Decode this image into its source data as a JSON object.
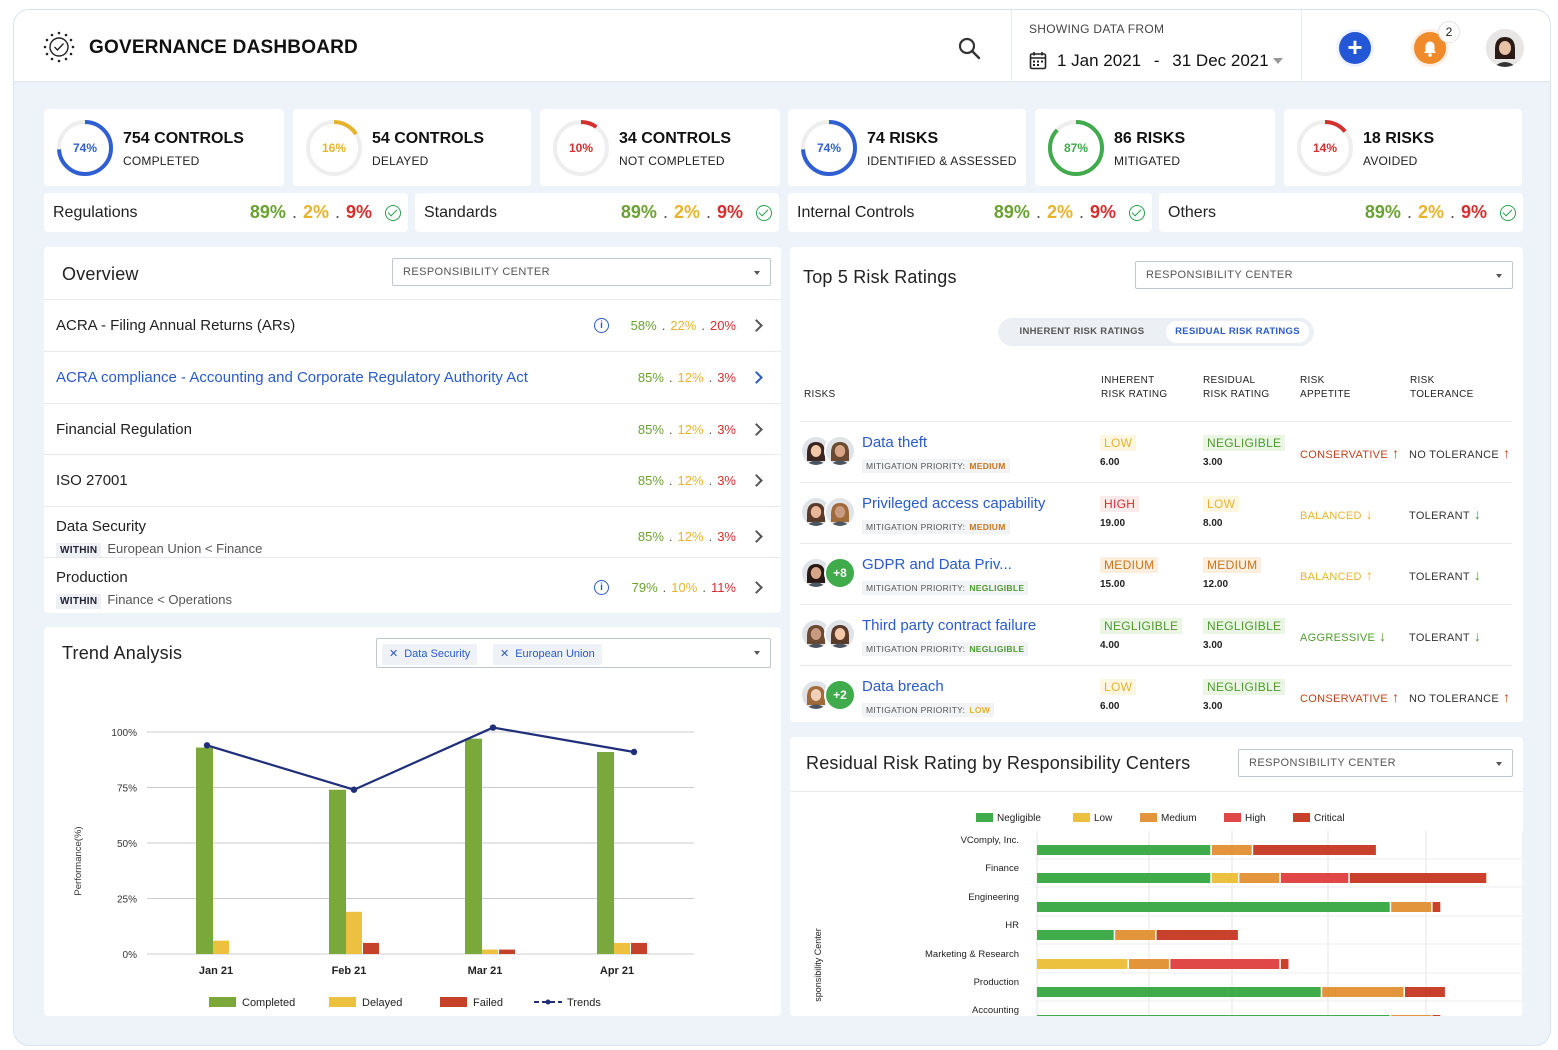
{
  "header": {
    "title": "GOVERNANCE DASHBOARD",
    "date_caption": "SHOWING DATA FROM",
    "date_start": "1 Jan 2021",
    "date_sep": "-",
    "date_end": "31 Dec 2021",
    "notification_count": "2"
  },
  "stats": [
    {
      "pct": "74%",
      "value": 0.74,
      "color": "#2f5fd3",
      "title": "754 CONTROLS",
      "sub": "COMPLETED"
    },
    {
      "pct": "16%",
      "value": 0.16,
      "color": "#e6b42c",
      "title": "54 CONTROLS",
      "sub": "DELAYED"
    },
    {
      "pct": "10%",
      "value": 0.1,
      "color": "#d4302f",
      "title": "34 CONTROLS",
      "sub": "NOT COMPLETED"
    },
    {
      "pct": "74%",
      "value": 0.74,
      "color": "#2f5fd3",
      "title": "74 RISKS",
      "sub": "IDENTIFIED & ASSESSED"
    },
    {
      "pct": "87%",
      "value": 0.87,
      "color": "#3fab4a",
      "title": "86 RISKS",
      "sub": "MITIGATED"
    },
    {
      "pct": "14%",
      "value": 0.14,
      "color": "#d4302f",
      "title": "18 RISKS",
      "sub": "AVOIDED"
    }
  ],
  "summary": [
    {
      "label": "Regulations",
      "g": "89%",
      "y": "2%",
      "r": "9%"
    },
    {
      "label": "Standards",
      "g": "89%",
      "y": "2%",
      "r": "9%"
    },
    {
      "label": "Internal Controls",
      "g": "89%",
      "y": "2%",
      "r": "9%"
    },
    {
      "label": "Others",
      "g": "89%",
      "y": "2%",
      "r": "9%"
    }
  ],
  "overview": {
    "title": "Overview",
    "select": "RESPONSIBILITY CENTER",
    "rows": [
      {
        "name": "ACRA - Filing Annual Returns (ARs)",
        "within": "",
        "within_tag": "",
        "g": "58%",
        "y": "22%",
        "r": "20%",
        "info": true,
        "link": false
      },
      {
        "name": "ACRA compliance - Accounting and Corporate Regulatory Authority Act",
        "within": "",
        "within_tag": "",
        "g": "85%",
        "y": "12%",
        "r": "3%",
        "info": false,
        "link": true
      },
      {
        "name": "Financial Regulation",
        "within": "",
        "within_tag": "",
        "g": "85%",
        "y": "12%",
        "r": "3%",
        "info": false,
        "link": false
      },
      {
        "name": "ISO 27001",
        "within": "",
        "within_tag": "",
        "g": "85%",
        "y": "12%",
        "r": "3%",
        "info": false,
        "link": false
      },
      {
        "name": "Data Security",
        "within_tag": "WITHIN",
        "within": "European Union < Finance",
        "g": "85%",
        "y": "12%",
        "r": "3%",
        "info": false,
        "link": false
      },
      {
        "name": "Production",
        "within_tag": "WITHIN",
        "within": "Finance < Operations",
        "g": "79%",
        "y": "10%",
        "r": "11%",
        "info": true,
        "link": false
      }
    ]
  },
  "trend": {
    "title": "Trend Analysis",
    "tags": [
      "Data Security",
      "European Union"
    ]
  },
  "chart_data": [
    {
      "type": "bar",
      "title": "Trend Analysis",
      "categories": [
        "Jan 21",
        "Feb 21",
        "Mar 21",
        "Apr 21"
      ],
      "series": [
        {
          "name": "Completed",
          "color": "#7aa83a",
          "values": [
            93,
            74,
            97,
            91
          ]
        },
        {
          "name": "Delayed",
          "color": "#ecc13f",
          "values": [
            6,
            19,
            2,
            5
          ]
        },
        {
          "name": "Failed",
          "color": "#c5412a",
          "values": [
            0,
            5,
            2,
            5
          ]
        },
        {
          "name": "Trends",
          "type": "line",
          "color": "#1f2f7a",
          "values": [
            94,
            74,
            102,
            91
          ]
        }
      ],
      "ylabel": "Performance(%)",
      "yticks": [
        "0%",
        "25%",
        "50%",
        "75%",
        "100%"
      ],
      "ylim": [
        0,
        100
      ],
      "grid": true,
      "legend": "bottom"
    },
    {
      "type": "bar",
      "orientation": "horizontal",
      "stacked": true,
      "title": "Residual Risk Rating by Responsibility Centers",
      "ylabel": "sponsibility Center",
      "categories": [
        "VComply, Inc.",
        "Finance",
        "Engineering",
        "HR",
        "Marketing & Research",
        "Production",
        "Accounting"
      ],
      "series": [
        {
          "name": "Negligible",
          "color": "#3fab4a",
          "values": [
            38,
            38,
            77,
            17,
            0,
            62,
            77
          ]
        },
        {
          "name": "Low",
          "color": "#ecc13f",
          "values": [
            0,
            6,
            0,
            0,
            20,
            0,
            0
          ]
        },
        {
          "name": "Medium",
          "color": "#e2953b",
          "values": [
            9,
            9,
            9,
            9,
            9,
            18,
            9
          ]
        },
        {
          "name": "High",
          "color": "#e04848",
          "values": [
            0,
            15,
            0,
            0,
            24,
            0,
            0
          ]
        },
        {
          "name": "Critical",
          "color": "#c8412d",
          "values": [
            27,
            30,
            2,
            18,
            2,
            9,
            2
          ]
        }
      ],
      "legend": "top"
    }
  ],
  "risks": {
    "title": "Top 5 Risk Ratings",
    "select": "RESPONSIBILITY CENTER",
    "toggle": [
      "INHERENT RISK RATINGS",
      "RESIDUAL RISK RATINGS"
    ],
    "headers": {
      "risks": "RISKS",
      "inherent_1": "INHERENT",
      "inherent_2": "RISK RATING",
      "residual_1": "RESIDUAL",
      "residual_2": "RISK RATING",
      "appetite_1": "RISK",
      "appetite_2": "APPETITE",
      "tolerance_1": "RISK",
      "tolerance_2": "TOLERANCE"
    },
    "rows": [
      {
        "name": "Data theft",
        "mit_label": "MITIGATION PRIORITY:",
        "mit": "MEDIUM",
        "mit_color": "#c8751e",
        "inh": "LOW",
        "inh_cls": "p-low",
        "inh_val": "6.00",
        "res": "NEGLIGIBLE",
        "res_cls": "p-neg",
        "res_val": "3.00",
        "app": "CONSERVATIVE",
        "app_cls": "c-cons",
        "app_dir": "up",
        "tol": "NO TOLERANCE",
        "tol_dir": "up",
        "tol_color": "#c0421c",
        "plus": ""
      },
      {
        "name": "Privileged access capability",
        "mit_label": "MITIGATION PRIORITY:",
        "mit": "MEDIUM",
        "mit_color": "#c8751e",
        "inh": "HIGH",
        "inh_cls": "p-high",
        "inh_val": "19.00",
        "res": "LOW",
        "res_cls": "p-low",
        "res_val": "8.00",
        "app": "BALANCED",
        "app_cls": "c-bal",
        "app_dir": "down",
        "tol": "TOLERANT",
        "tol_dir": "down",
        "tol_color": "#4f9a2d",
        "plus": ""
      },
      {
        "name": "GDPR and Data Priv...",
        "mit_label": "MITIGATION PRIORITY:",
        "mit": "NEGLIGIBLE",
        "mit_color": "#4f9a2d",
        "inh": "MEDIUM",
        "inh_cls": "p-med",
        "inh_val": "15.00",
        "res": "MEDIUM",
        "res_cls": "p-med",
        "res_val": "12.00",
        "app": "BALANCED",
        "app_cls": "c-bal",
        "app_dir": "up",
        "tol": "TOLERANT",
        "tol_dir": "down",
        "tol_color": "#4f9a2d",
        "plus": "+8"
      },
      {
        "name": "Third party contract failure",
        "mit_label": "MITIGATION PRIORITY:",
        "mit": "NEGLIGIBLE",
        "mit_color": "#4f9a2d",
        "inh": "NEGLIGIBLE",
        "inh_cls": "p-neg",
        "inh_val": "4.00",
        "res": "NEGLIGIBLE",
        "res_cls": "p-neg",
        "res_val": "3.00",
        "app": "AGGRESSIVE",
        "app_cls": "c-agg",
        "app_dir": "down",
        "tol": "TOLERANT",
        "tol_dir": "down",
        "tol_color": "#4f9a2d",
        "plus": ""
      },
      {
        "name": "Data breach",
        "mit_label": "MITIGATION PRIORITY:",
        "mit": "LOW",
        "mit_color": "#e6b42c",
        "inh": "LOW",
        "inh_cls": "p-low",
        "inh_val": "6.00",
        "res": "NEGLIGIBLE",
        "res_cls": "p-neg",
        "res_val": "3.00",
        "app": "CONSERVATIVE",
        "app_cls": "c-cons",
        "app_dir": "up",
        "tol": "NO TOLERANCE",
        "tol_dir": "up",
        "tol_color": "#c0421c",
        "plus": "+2"
      }
    ]
  },
  "residual": {
    "title": "Residual Risk Rating by Responsibility Centers",
    "select": "RESPONSIBILITY CENTER"
  }
}
